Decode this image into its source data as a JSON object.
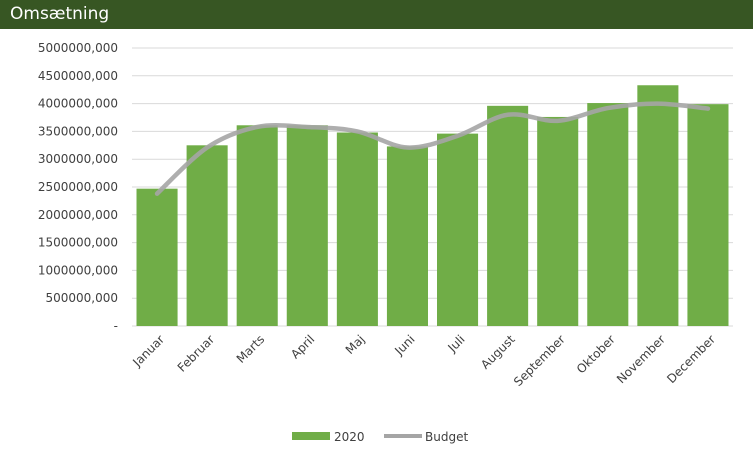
{
  "chart_data": {
    "type": "bar",
    "title": "Omsætning",
    "categories": [
      "Januar",
      "Februar",
      "Marts",
      "April",
      "Maj",
      "Juni",
      "Juli",
      "August",
      "September",
      "Oktober",
      "November",
      "December"
    ],
    "series": [
      {
        "name": "2020",
        "kind": "bar",
        "color": "#70AD47",
        "values": [
          2470000,
          3250000,
          3610000,
          3610000,
          3480000,
          3230000,
          3460000,
          3960000,
          3760000,
          4010000,
          4330000,
          3990000
        ]
      },
      {
        "name": "Budget",
        "kind": "line",
        "color": "#A5A5A5",
        "values": [
          2380000,
          3210000,
          3580000,
          3580000,
          3500000,
          3210000,
          3420000,
          3800000,
          3690000,
          3920000,
          4000000,
          3910000
        ]
      }
    ],
    "y_ticks": [
      "-",
      "500000,000",
      "1000000,000",
      "1500000,000",
      "2000000,000",
      "2500000,000",
      "3000000,000",
      "3500000,000",
      "4000000,000",
      "4500000,000",
      "5000000,000"
    ],
    "ylim": [
      0,
      5000000
    ],
    "grid": true,
    "legend": "bottom",
    "colors": {
      "title_bg": "#375623",
      "title_text": "#FFFFFF",
      "gridline": "#D9D9D9",
      "text": "#404040"
    }
  }
}
